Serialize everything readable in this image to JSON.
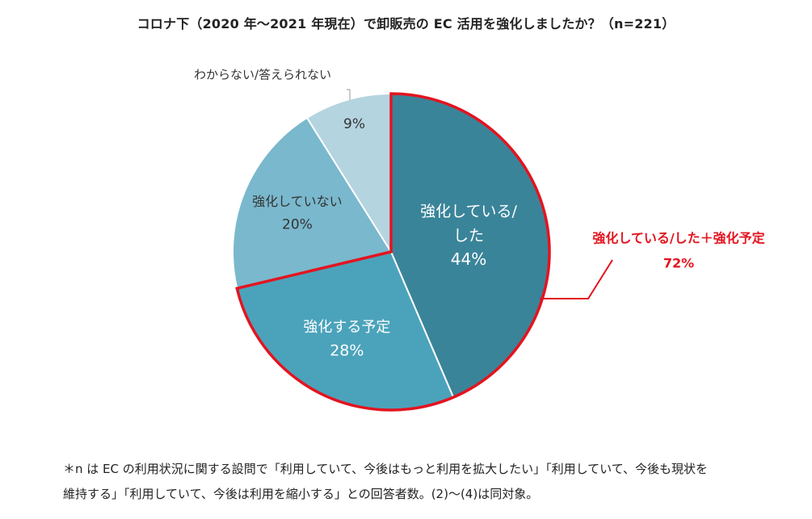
{
  "title": "コロナ下（2020 年～2021 年現在）で卸販売の EC 活用を強化しましたか？（n=221）",
  "chart_data": {
    "type": "pie",
    "title": "コロナ下（2020 年～2021 年現在）で卸販売の EC 活用を強化しましたか？（n=221）",
    "slices": [
      {
        "label_lines": [
          "強化している/",
          "した"
        ],
        "value": 44,
        "value_label": "44%",
        "color": "#3a8499",
        "text_color": "#ffffff"
      },
      {
        "label_lines": [
          "強化する予定"
        ],
        "value": 28,
        "value_label": "28%",
        "color": "#4ba3bb",
        "text_color": "#ffffff"
      },
      {
        "label_lines": [
          "強化していない"
        ],
        "value": 20,
        "value_label": "20%",
        "color": "#7ab8cd",
        "text_color": "#333333"
      },
      {
        "label_lines": [
          "わからない/答えられない"
        ],
        "value": 9,
        "value_label": "9%",
        "color": "#b4d4e0",
        "text_color": "#333333"
      }
    ],
    "highlight": {
      "line1": "強化している/した＋強化予定",
      "line2": "72%",
      "color": "#e3141f"
    }
  },
  "footnote": {
    "line1": "＊n は EC の利用状況に関する設問で「利用していて、今後はもっと利用を拡大したい」「利用していて、今後も現状を",
    "line2": "維持する」「利用していて、今後は利用を縮小する」との回答者数。(2)～(4)は同対象。"
  }
}
